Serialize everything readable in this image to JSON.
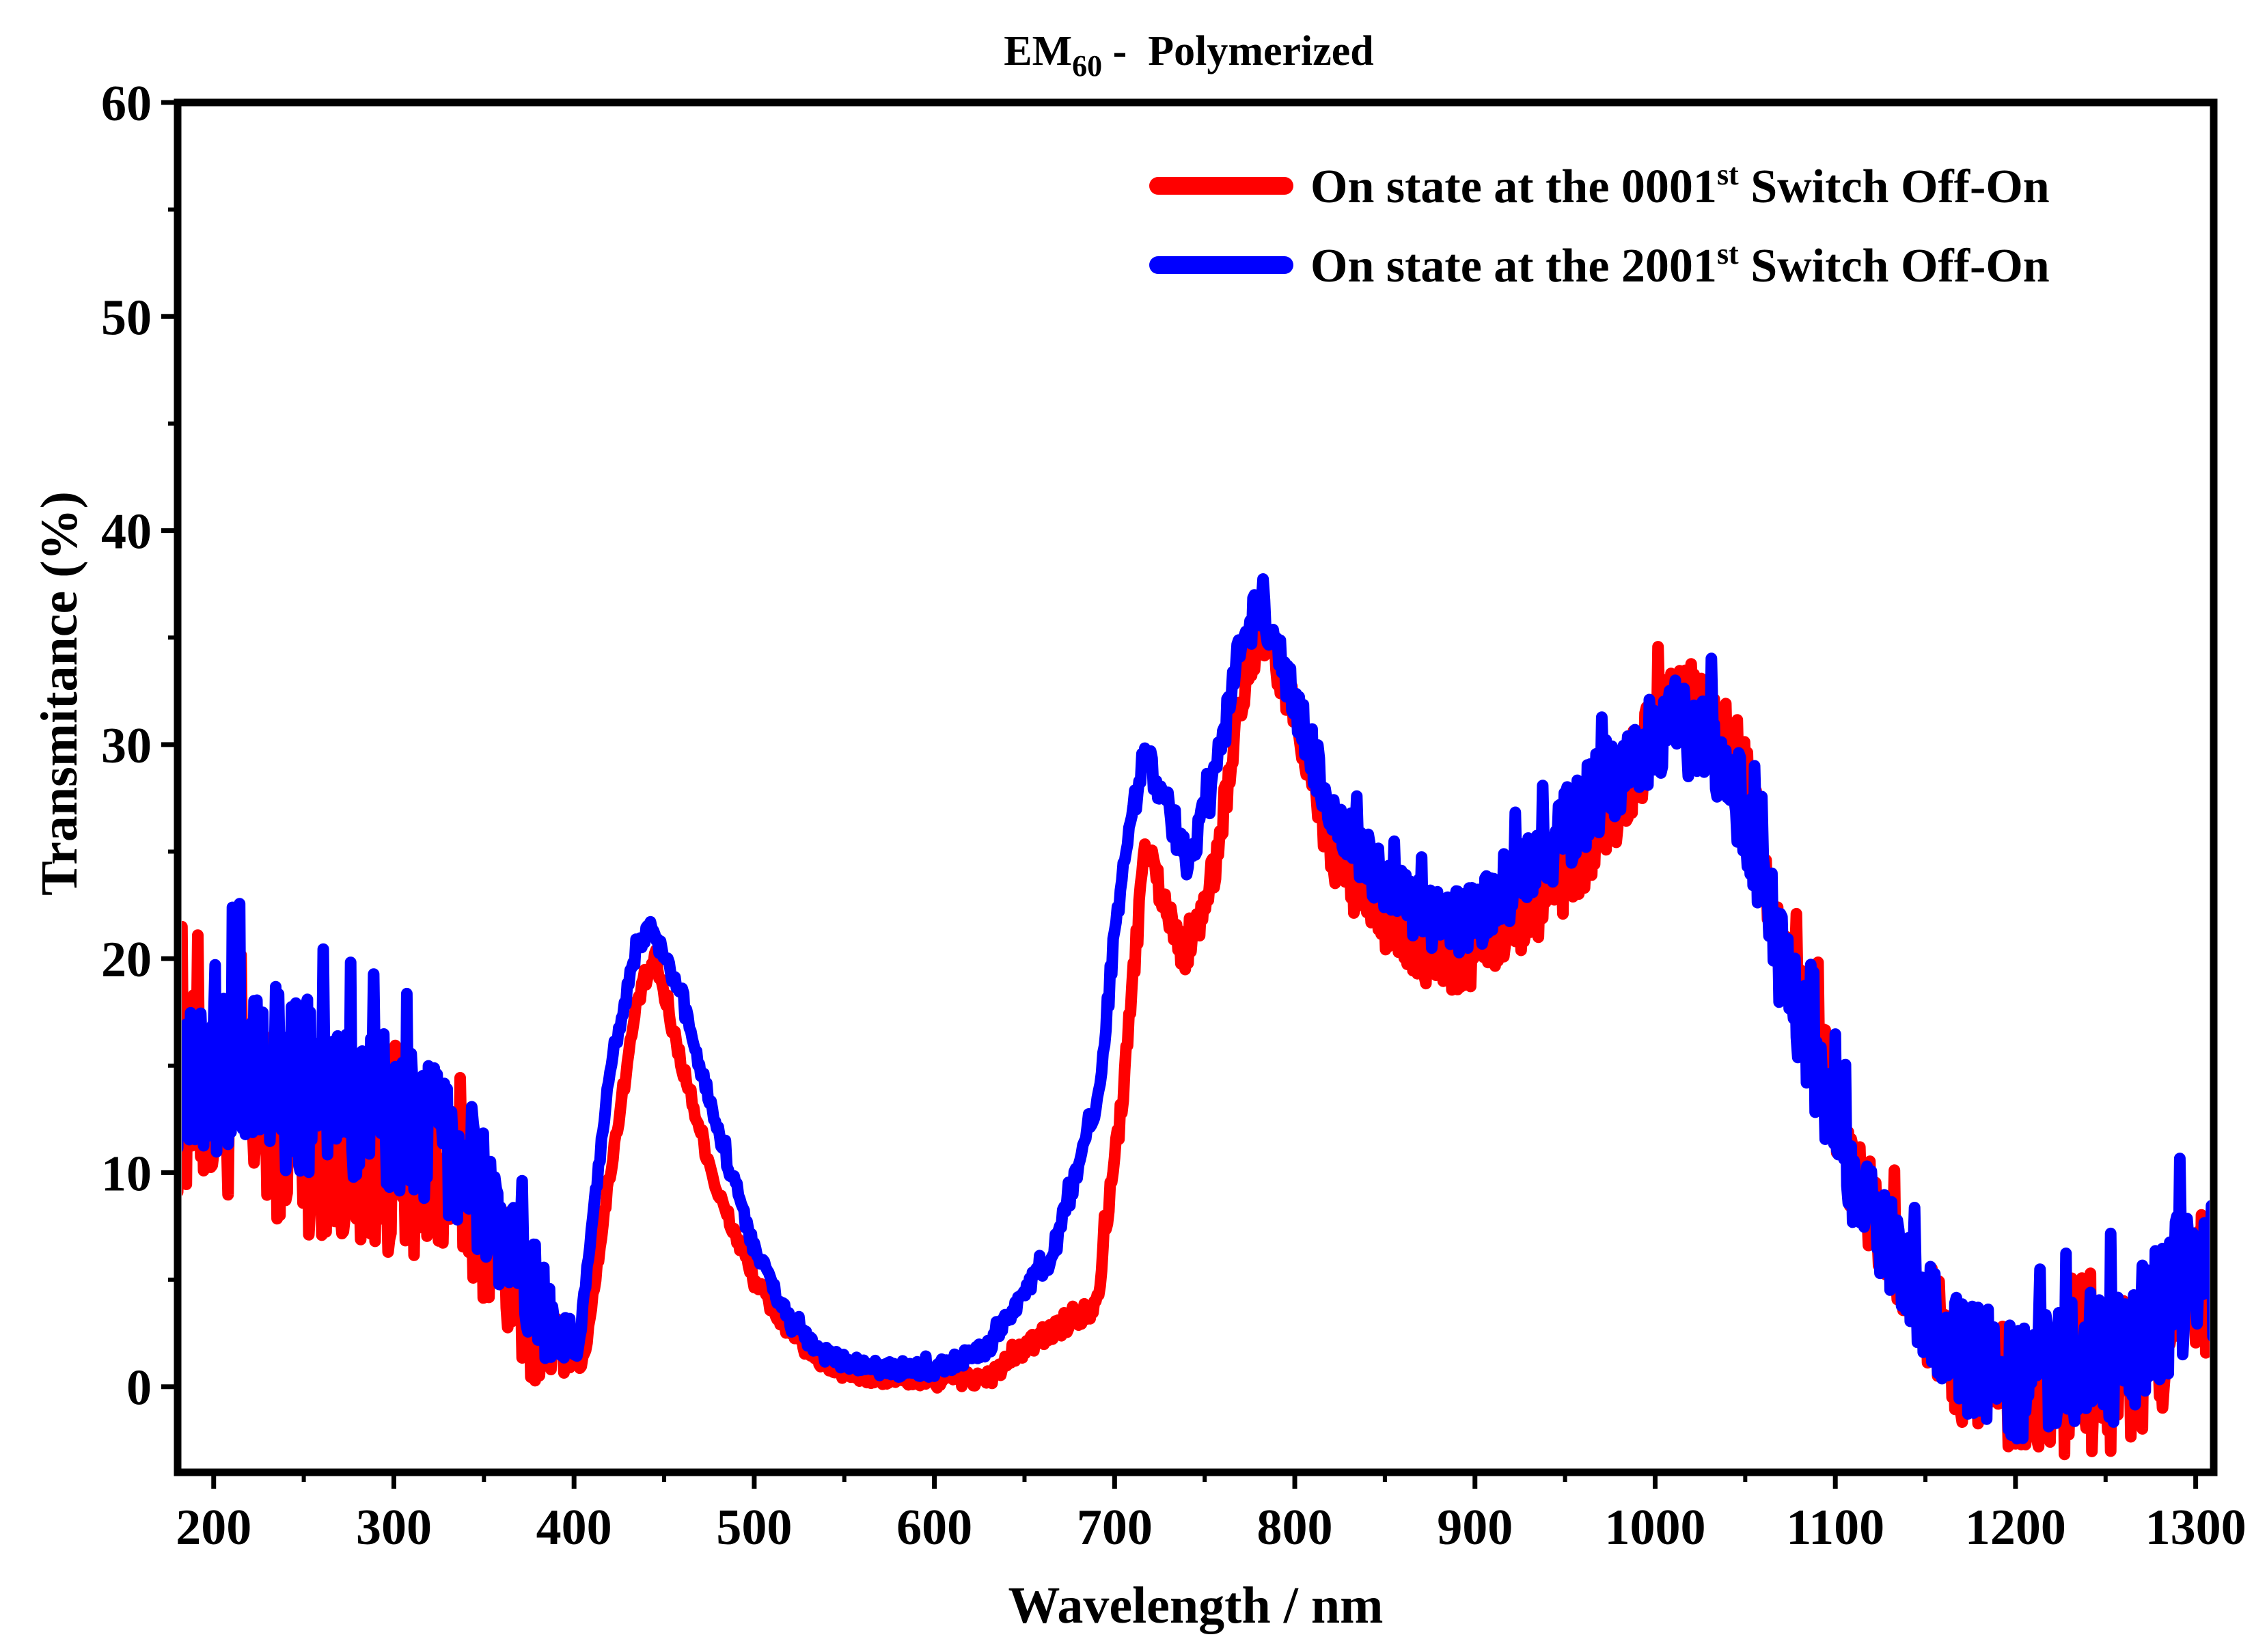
{
  "chart_data": {
    "type": "line",
    "title_main": "EM",
    "title_sub": "60",
    "title_rest": " -  Polymerized",
    "xlabel": "Wavelength / nm",
    "ylabel": "Transmitance (%)",
    "xlim": [
      180,
      1310
    ],
    "ylim": [
      -4,
      60
    ],
    "xticks": [
      200,
      300,
      400,
      500,
      600,
      700,
      800,
      900,
      1000,
      1100,
      1200,
      1300
    ],
    "yticks": [
      0,
      10,
      20,
      30,
      40,
      50,
      60
    ],
    "legend_position": "top-right",
    "series": [
      {
        "name_prefix": "On state at the 0001",
        "name_sup": "st",
        "name_suffix": " Switch Off-On",
        "color": "#ff0000",
        "noise": [
          [
            180,
            5
          ],
          [
            380,
            3
          ],
          [
            400,
            0.4
          ],
          [
            640,
            0.4
          ],
          [
            940,
            2
          ],
          [
            1060,
            2.5
          ],
          [
            1150,
            2.5
          ],
          [
            1310,
            4
          ]
        ],
        "points": [
          [
            180,
            14
          ],
          [
            220,
            13
          ],
          [
            260,
            11
          ],
          [
            300,
            10
          ],
          [
            340,
            9
          ],
          [
            370,
            4
          ],
          [
            390,
            2
          ],
          [
            405,
            1
          ],
          [
            420,
            10
          ],
          [
            435,
            18
          ],
          [
            445,
            20
          ],
          [
            460,
            15
          ],
          [
            480,
            9
          ],
          [
            500,
            5
          ],
          [
            520,
            2.5
          ],
          [
            540,
            1
          ],
          [
            560,
            0.5
          ],
          [
            600,
            0.3
          ],
          [
            630,
            0.4
          ],
          [
            650,
            1.8
          ],
          [
            665,
            2.6
          ],
          [
            690,
            4
          ],
          [
            705,
            14
          ],
          [
            717,
            25.5
          ],
          [
            730,
            22
          ],
          [
            740,
            20
          ],
          [
            755,
            24
          ],
          [
            768,
            31
          ],
          [
            780,
            35.5
          ],
          [
            800,
            31.5
          ],
          [
            820,
            25
          ],
          [
            850,
            21.5
          ],
          [
            880,
            20
          ],
          [
            900,
            20.5
          ],
          [
            950,
            24
          ],
          [
            990,
            29
          ],
          [
            1010,
            32.5
          ],
          [
            1030,
            32
          ],
          [
            1050,
            28
          ],
          [
            1070,
            20
          ],
          [
            1090,
            16
          ],
          [
            1110,
            10
          ],
          [
            1140,
            5
          ],
          [
            1170,
            1
          ],
          [
            1200,
            0
          ],
          [
            1250,
            0
          ],
          [
            1270,
            1.5
          ],
          [
            1290,
            3.5
          ],
          [
            1310,
            5
          ]
        ]
      },
      {
        "name_prefix": "On state at the 2001",
        "name_sup": "st",
        "name_suffix": " Switch Off-On",
        "color": "#0000ff",
        "noise": [
          [
            180,
            5
          ],
          [
            380,
            3
          ],
          [
            400,
            0.4
          ],
          [
            640,
            0.4
          ],
          [
            940,
            2
          ],
          [
            1060,
            2.5
          ],
          [
            1150,
            2.5
          ],
          [
            1310,
            4
          ]
        ],
        "points": [
          [
            180,
            16
          ],
          [
            220,
            15
          ],
          [
            260,
            14
          ],
          [
            300,
            13
          ],
          [
            340,
            11
          ],
          [
            370,
            5
          ],
          [
            390,
            3
          ],
          [
            402,
            1.5
          ],
          [
            420,
            15
          ],
          [
            435,
            20.5
          ],
          [
            443,
            21.5
          ],
          [
            460,
            18
          ],
          [
            480,
            12
          ],
          [
            500,
            6.5
          ],
          [
            520,
            3
          ],
          [
            540,
            1.5
          ],
          [
            560,
            0.9
          ],
          [
            600,
            0.8
          ],
          [
            630,
            1.8
          ],
          [
            650,
            4.5
          ],
          [
            665,
            6
          ],
          [
            690,
            13
          ],
          [
            705,
            25
          ],
          [
            717,
            29.5
          ],
          [
            730,
            27
          ],
          [
            740,
            24.5
          ],
          [
            755,
            28
          ],
          [
            768,
            34
          ],
          [
            780,
            36.5
          ],
          [
            800,
            32
          ],
          [
            820,
            27
          ],
          [
            850,
            23.5
          ],
          [
            880,
            21.5
          ],
          [
            900,
            22
          ],
          [
            950,
            26
          ],
          [
            990,
            30
          ],
          [
            1010,
            31
          ],
          [
            1030,
            30.5
          ],
          [
            1050,
            27
          ],
          [
            1070,
            20
          ],
          [
            1090,
            15
          ],
          [
            1110,
            10
          ],
          [
            1140,
            5
          ],
          [
            1170,
            1.5
          ],
          [
            1200,
            0.5
          ],
          [
            1250,
            1.5
          ],
          [
            1270,
            2.5
          ],
          [
            1290,
            4.5
          ],
          [
            1310,
            5.5
          ]
        ]
      }
    ]
  }
}
